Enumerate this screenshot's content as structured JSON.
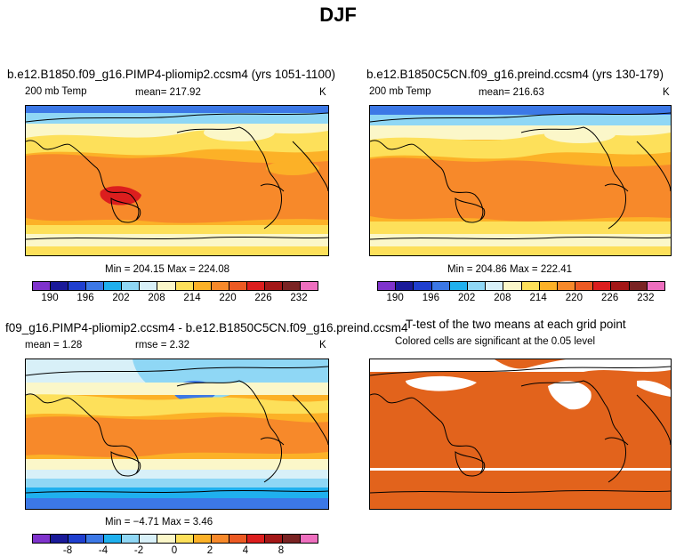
{
  "figure_title": "DJF",
  "panels": {
    "p1": {
      "title": "b.e12.B1850.f09_g16.PIMP4-pliomip2.ccsm4 (yrs 1051-1100)",
      "left_label": "200 mb Temp",
      "center_label": "mean= 217.92",
      "units": "K",
      "minmax": "Min = 204.15 Max = 224.08",
      "colorbar_labels": [
        "190",
        "196",
        "202",
        "208",
        "214",
        "220",
        "226",
        "232"
      ]
    },
    "p2": {
      "title": "b.e12.B1850C5CN.f09_g16.preind.ccsm4 (yrs 130-179)",
      "left_label": "200 mb Temp",
      "center_label": "mean= 216.63",
      "units": "K",
      "minmax": "Min = 204.86 Max = 222.41",
      "colorbar_labels": [
        "190",
        "196",
        "202",
        "208",
        "214",
        "220",
        "226",
        "232"
      ]
    },
    "p3": {
      "title": "f09_g16.PIMP4-pliomip2.ccsm4 - b.e12.B1850C5CN.f09_g16.preind.ccsm4",
      "left_label": "mean =    1.28",
      "center_label": "rmse =    2.32",
      "units": "K",
      "minmax": "Min =  −4.71 Max =    3.46",
      "colorbar_labels": [
        "-8",
        "-4",
        "-2",
        "0",
        "2",
        "4",
        "8"
      ]
    },
    "p4": {
      "title": "T-test of the two means at each grid point",
      "subtitle": "Colored cells are significant at the 0.05 level"
    }
  },
  "colors": {
    "temp_scale": [
      "#7f33cc",
      "#1a1a99",
      "#1f3fcf",
      "#3c78e6",
      "#1fb0ee",
      "#8fd7f5",
      "#d8f0f8",
      "#fbf7c9",
      "#fde05a",
      "#fcb127",
      "#f7892a",
      "#ec5a23",
      "#dc1e1e",
      "#a31717",
      "#7a2323",
      "#ee6fbf"
    ],
    "diff_scale": [
      "#7f33cc",
      "#1a1a99",
      "#1f3fcf",
      "#3c78e6",
      "#1fb0ee",
      "#8fd7f5",
      "#d8f0f8",
      "#fbf7c9",
      "#fde05a",
      "#fcb127",
      "#f7892a",
      "#ec5a23",
      "#dc1e1e",
      "#a31717",
      "#7a2323",
      "#ee6fbf"
    ],
    "ttest_fill": "#e2631c"
  }
}
